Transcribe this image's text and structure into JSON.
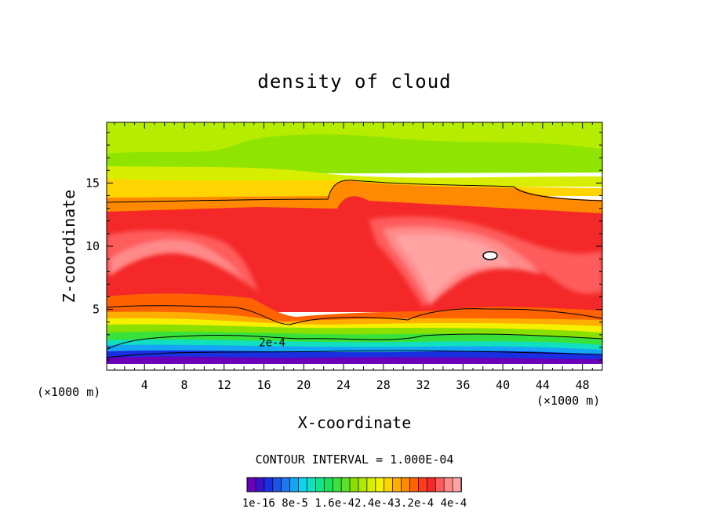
{
  "chart_data": {
    "type": "heatmap",
    "title": "density of cloud",
    "xlabel": "X-coordinate",
    "ylabel": "Z-coordinate",
    "x_unit_left": "(×1000 m)",
    "x_unit_right": "(×1000 m)",
    "xlim": [
      0.2,
      50
    ],
    "ylim": [
      0.2,
      19.8
    ],
    "x_ticks": [
      4,
      8,
      12,
      16,
      20,
      24,
      28,
      32,
      36,
      40,
      44,
      48
    ],
    "y_ticks": [
      5,
      10,
      15
    ],
    "contour_interval_text": "CONTOUR INTERVAL = 1.000E-04",
    "contour_label": "2e-4",
    "contour_label_position": [
      15.5,
      2.4
    ],
    "colorbar": {
      "labels": [
        "1e-16",
        "8e-5",
        "1.6e-4",
        "2.4e-4",
        "3.2e-4",
        "4e-4"
      ],
      "label_line": "1e-16 8e-5 1.6e-42.4e-43.2e-4 4e-4",
      "colors": [
        "#6a00b8",
        "#3a12c8",
        "#1a2fe0",
        "#1c52ea",
        "#1f78f0",
        "#14a6f5",
        "#10d2f0",
        "#10e0c0",
        "#14e488",
        "#1de05a",
        "#38e23a",
        "#5ae028",
        "#8ae000",
        "#aee800",
        "#d6ee00",
        "#f5ef00",
        "#ffd200",
        "#ffae00",
        "#ff8a00",
        "#ff6200",
        "#ff3c1e",
        "#f42828",
        "#ff5b5b",
        "#ff8a8a",
        "#ffa3a3"
      ]
    },
    "density_bands": [
      {
        "z": [
          0.2,
          0.5
        ],
        "value": "1e-16"
      },
      {
        "z": [
          0.5,
          1.5
        ],
        "value": "8e-5"
      },
      {
        "z": [
          1.5,
          2.5
        ],
        "value": "1.6e-4"
      },
      {
        "z": [
          2.5,
          5
        ],
        "value": "2.4e-4"
      },
      {
        "z": [
          5,
          14
        ],
        "value": "3.2e-4 to 4e-4"
      },
      {
        "z": [
          14,
          19.8
        ],
        "value": "8e-5 to 1.6e-4"
      }
    ]
  }
}
